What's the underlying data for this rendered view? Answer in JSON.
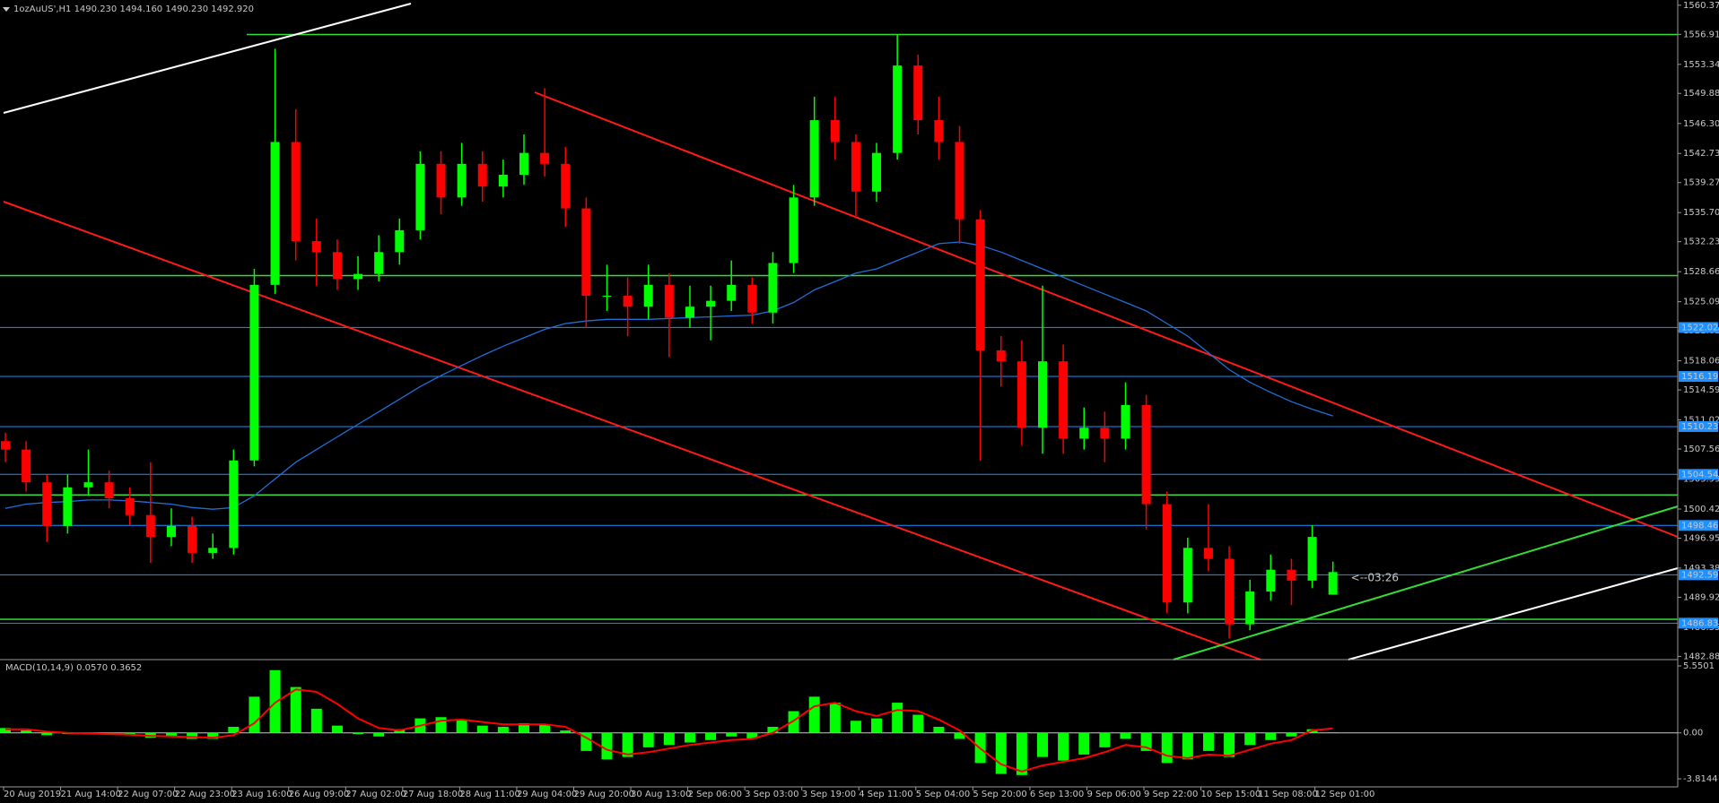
{
  "chart_data": {
    "type": "candlestick",
    "title": "1ozAuUS',H1  1490.230 1494.160 1490.230 1492.920",
    "up_color": "#00ff00",
    "down_color": "#ff0000",
    "ohlc": [
      [
        1508.5,
        1509.5,
        1506,
        1507.5
      ],
      [
        1507.5,
        1508.5,
        1502.5,
        1503.6
      ],
      [
        1503.6,
        1504.5,
        1496.5,
        1498.4
      ],
      [
        1498.4,
        1504.5,
        1497.5,
        1503
      ],
      [
        1503,
        1507.5,
        1502,
        1503.6
      ],
      [
        1503.6,
        1505,
        1500.5,
        1501.7
      ],
      [
        1501.7,
        1503,
        1498.5,
        1499.7
      ],
      [
        1499.7,
        1506,
        1494,
        1497.1
      ],
      [
        1497.1,
        1500.5,
        1496,
        1498.4
      ],
      [
        1498.4,
        1499.5,
        1494,
        1495.2
      ],
      [
        1495.2,
        1497.5,
        1494.5,
        1495.8
      ],
      [
        1495.8,
        1507.5,
        1495,
        1506.2
      ],
      [
        1506.2,
        1529,
        1505.5,
        1527.1
      ],
      [
        1527.1,
        1555.2,
        1526,
        1544.1
      ],
      [
        1544.1,
        1548,
        1530,
        1532.3
      ],
      [
        1532.3,
        1535,
        1527,
        1531
      ],
      [
        1531,
        1532.5,
        1526.5,
        1527.8
      ],
      [
        1527.8,
        1530.5,
        1526.5,
        1528.4
      ],
      [
        1528.4,
        1533,
        1527.5,
        1531
      ],
      [
        1531,
        1535,
        1529.5,
        1533.6
      ],
      [
        1533.6,
        1543,
        1532.5,
        1541.5
      ],
      [
        1541.5,
        1543,
        1535.5,
        1537.5
      ],
      [
        1537.5,
        1544,
        1536.5,
        1541.5
      ],
      [
        1541.5,
        1543,
        1537,
        1538.8
      ],
      [
        1538.8,
        1542,
        1537.5,
        1540.2
      ],
      [
        1540.2,
        1545,
        1539,
        1542.8
      ],
      [
        1542.8,
        1550.5,
        1540,
        1541.5
      ],
      [
        1541.5,
        1543.5,
        1534,
        1536.2
      ],
      [
        1536.2,
        1537.5,
        1522,
        1525.8
      ],
      [
        1525.8,
        1529.5,
        1524,
        1525.8
      ],
      [
        1525.8,
        1528,
        1521,
        1524.5
      ],
      [
        1524.5,
        1529.5,
        1523,
        1527.1
      ],
      [
        1527.1,
        1528.5,
        1518.5,
        1523.2
      ],
      [
        1523.2,
        1527,
        1522,
        1524.5
      ],
      [
        1524.5,
        1527,
        1520.5,
        1525.2
      ],
      [
        1525.2,
        1530,
        1524,
        1527.1
      ],
      [
        1527.1,
        1528,
        1522.5,
        1523.8
      ],
      [
        1523.8,
        1531,
        1522.5,
        1529.7
      ],
      [
        1529.7,
        1539,
        1528.5,
        1537.5
      ],
      [
        1537.5,
        1549.5,
        1536.5,
        1546.7
      ],
      [
        1546.7,
        1549.5,
        1542,
        1544.1
      ],
      [
        1544.1,
        1545,
        1535,
        1538.2
      ],
      [
        1538.2,
        1544,
        1537,
        1542.8
      ],
      [
        1542.8,
        1556.9,
        1542,
        1553.2
      ],
      [
        1553.2,
        1554.5,
        1545,
        1546.7
      ],
      [
        1546.7,
        1549.5,
        1542,
        1544.1
      ],
      [
        1544.1,
        1546,
        1532,
        1534.9
      ],
      [
        1534.9,
        1536,
        1506.2,
        1519.3
      ],
      [
        1519.3,
        1521,
        1515,
        1518
      ],
      [
        1518,
        1520.5,
        1508,
        1510.1
      ],
      [
        1510.1,
        1527,
        1507,
        1518
      ],
      [
        1518,
        1520,
        1507,
        1508.8
      ],
      [
        1508.8,
        1512.5,
        1507.5,
        1510.1
      ],
      [
        1510.1,
        1512,
        1506,
        1508.8
      ],
      [
        1508.8,
        1515.5,
        1507.5,
        1512.8
      ],
      [
        1512.8,
        1514,
        1498,
        1501
      ],
      [
        1501,
        1502.5,
        1488,
        1489.3
      ],
      [
        1489.3,
        1497,
        1488,
        1495.8
      ],
      [
        1495.8,
        1501,
        1493,
        1494.5
      ],
      [
        1494.5,
        1496,
        1485,
        1486.7
      ],
      [
        1486.7,
        1492,
        1486,
        1490.6
      ],
      [
        1490.6,
        1495,
        1489.5,
        1493.2
      ],
      [
        1493.2,
        1494.5,
        1489,
        1491.9
      ],
      [
        1491.9,
        1498.5,
        1491,
        1497.1
      ],
      [
        1490.23,
        1494.16,
        1490.23,
        1492.92
      ]
    ],
    "ma": {
      "color": "#1e6fd9",
      "values": [
        1500.5,
        1501,
        1501.2,
        1501.3,
        1501.5,
        1501.5,
        1501.4,
        1501.2,
        1501,
        1500.6,
        1500.4,
        1500.6,
        1502,
        1504,
        1506,
        1507.5,
        1509,
        1510.5,
        1512,
        1513.5,
        1515,
        1516.3,
        1517.5,
        1518.7,
        1519.8,
        1520.8,
        1521.8,
        1522.5,
        1522.8,
        1523,
        1523,
        1523,
        1523.1,
        1523.2,
        1523.3,
        1523.4,
        1523.5,
        1524,
        1525,
        1526.5,
        1527.5,
        1528.5,
        1529,
        1530,
        1531,
        1532,
        1532.2,
        1531.8,
        1531,
        1530,
        1529,
        1528,
        1527,
        1526,
        1525,
        1524,
        1522.5,
        1521,
        1519,
        1517,
        1515.5,
        1514.3,
        1513.2,
        1512.3,
        1511.5
      ]
    },
    "levels": {
      "color": "#1e90ff",
      "values": [
        1522.027,
        1516.199,
        1510.236,
        1504.545,
        1498.467,
        1492.599,
        1486.838
      ]
    },
    "support_lines": {
      "color": "#33dd33",
      "values": [
        1556.9,
        1528.2,
        1502.1,
        1487.3
      ]
    },
    "ylim": [
      1482.5,
      1561.0
    ],
    "yticks": [
      1560.375,
      {
        "value": 1556.91,
        "label": "1556.910"
      },
      {
        "value": 1553.34,
        "label": "1553.340"
      },
      1549.885,
      1546.305,
      1542.735,
      {
        "value": 1539.27,
        "label": "1539.270"
      },
      {
        "value": 1535.7,
        "label": "1535.700"
      },
      1532.235,
      1528.665,
      1525.095,
      {
        "value": 1521.63,
        "label": "1521.630"
      },
      {
        "value": 1518.06,
        "label": "1518.060"
      },
      1514.595,
      1511.025,
      {
        "value": 1507.56,
        "label": "1507.560"
      },
      {
        "value": 1503.99,
        "label": "1503.990"
      },
      {
        "value": 1500.42,
        "label": "1500.420"
      },
      1496.955,
      1493.385,
      {
        "value": 1489.92,
        "label": "1489.920"
      },
      {
        "value": 1486.35,
        "label": "1486.350"
      },
      1482.885
    ],
    "x_labels": [
      "20 Aug 2019",
      "21 Aug 14:00",
      "22 Aug 07:00",
      "22 Aug 23:00",
      "23 Aug 16:00",
      "26 Aug 09:00",
      "27 Aug 02:00",
      "27 Aug 18:00",
      "28 Aug 11:00",
      "29 Aug 04:00",
      "29 Aug 20:00",
      "30 Aug 13:00",
      "2 Sep 06:00",
      "3 Sep 03:00",
      "3 Sep 19:00",
      "4 Sep 11:00",
      "5 Sep 04:00",
      "5 Sep 20:00",
      "6 Sep 13:00",
      "9 Sep 06:00",
      "9 Sep 22:00",
      "10 Sep 15:00",
      "11 Sep 08:00",
      "12 Sep 01:00"
    ],
    "annotation": "<--03:26",
    "macd": {
      "label": "MACD(10,14,9) 0.0570 0.3652",
      "ylim": [
        -4.48,
        6.0
      ],
      "yticks": [
        5.5501,
        {
          "value": 0,
          "label": "0.00"
        },
        -3.8144
      ],
      "histogram": {
        "color": "#00ff00",
        "values": [
          0.4,
          0.2,
          -0.2,
          -0.1,
          0,
          -0.1,
          -0.2,
          -0.4,
          -0.3,
          -0.5,
          -0.5,
          0.5,
          3.0,
          5.2,
          3.8,
          2.0,
          0.6,
          -0.1,
          -0.3,
          0.3,
          1.2,
          1.3,
          1.1,
          0.6,
          0.5,
          0.8,
          0.7,
          0.2,
          -1.5,
          -2.2,
          -2.0,
          -1.2,
          -1.0,
          -0.8,
          -0.6,
          -0.3,
          -0.5,
          0.5,
          1.8,
          3.0,
          2.5,
          1.0,
          1.2,
          2.5,
          1.5,
          0.5,
          -0.5,
          -2.5,
          -3.4,
          -3.5,
          -2.0,
          -2.3,
          -1.8,
          -1.2,
          -0.5,
          -1.5,
          -2.5,
          -2.2,
          -1.5,
          -2.0,
          -1.0,
          -0.6,
          -0.3,
          0.3,
          0.057
        ]
      },
      "signal": {
        "color": "#ff0000",
        "values": [
          0.3,
          0.3,
          0.1,
          0,
          -0.05,
          -0.1,
          -0.15,
          -0.25,
          -0.3,
          -0.35,
          -0.4,
          -0.2,
          0.8,
          2.5,
          3.6,
          3.4,
          2.4,
          1.2,
          0.4,
          0.2,
          0.6,
          1.0,
          1.1,
          0.9,
          0.7,
          0.7,
          0.7,
          0.5,
          -0.4,
          -1.4,
          -1.8,
          -1.6,
          -1.3,
          -1.0,
          -0.8,
          -0.6,
          -0.5,
          0,
          1.0,
          2.2,
          2.5,
          1.8,
          1.4,
          1.9,
          1.8,
          1.1,
          0.2,
          -1.3,
          -2.6,
          -3.2,
          -2.7,
          -2.4,
          -2.1,
          -1.6,
          -1.0,
          -1.2,
          -1.9,
          -2.1,
          -1.8,
          -1.9,
          -1.4,
          -0.9,
          -0.6,
          0.2,
          0.3652
        ]
      }
    }
  }
}
